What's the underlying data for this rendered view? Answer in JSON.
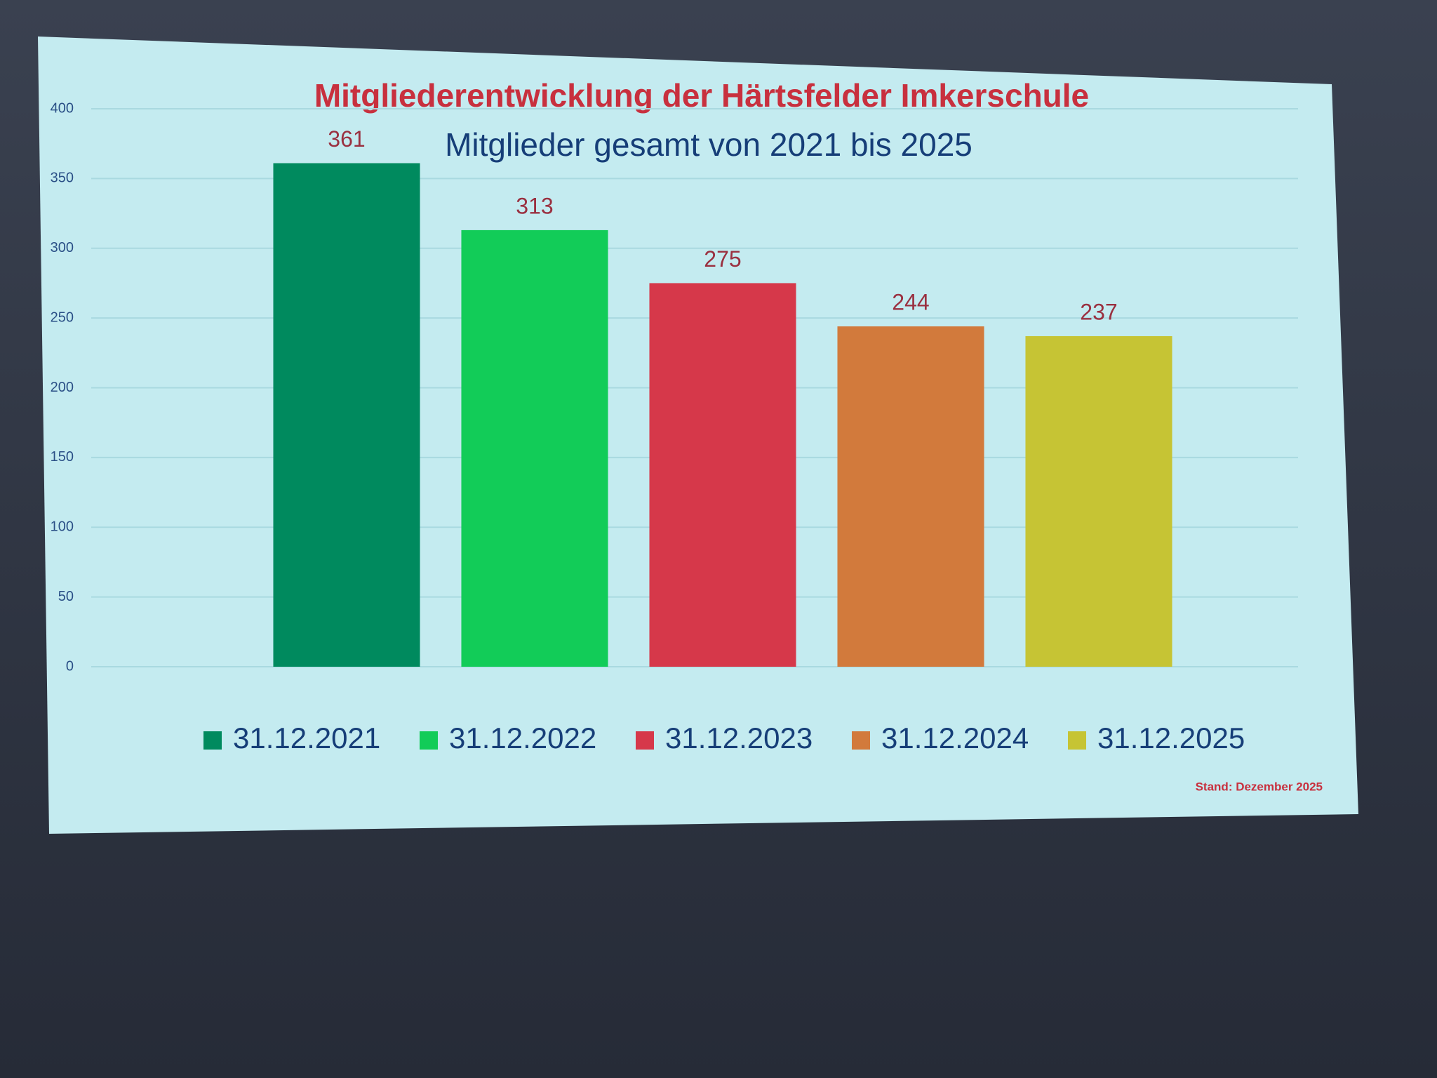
{
  "chart_data": {
    "type": "bar",
    "title": "Mitgliederentwicklung der Härtsfelder Imkerschule",
    "subtitle": "Mitglieder gesamt von 2021 bis 2025",
    "categories": [
      "31.12.2021",
      "31.12.2022",
      "31.12.2023",
      "31.12.2024",
      "31.12.2025"
    ],
    "values": [
      361,
      313,
      275,
      244,
      237
    ],
    "colors": [
      "#008a5e",
      "#12cc58",
      "#d6384a",
      "#d27a3c",
      "#c6c434"
    ],
    "ylim": [
      0,
      400
    ],
    "yticks": [
      0,
      50,
      100,
      150,
      200,
      250,
      300,
      350,
      400
    ],
    "grid": true,
    "legend": "bottom",
    "note": "Stand: Dezember 2025"
  }
}
